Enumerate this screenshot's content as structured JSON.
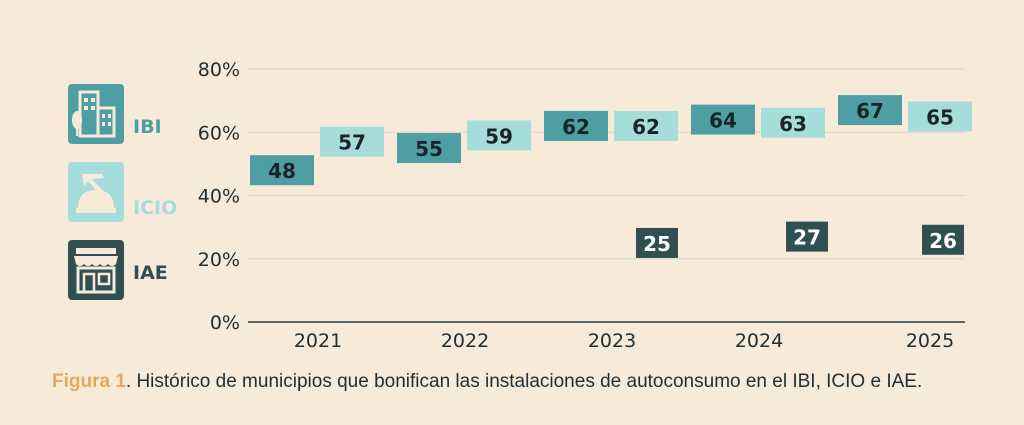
{
  "legend": [
    {
      "key": "ibi",
      "label": "IBI",
      "icon": "buildings-icon",
      "color": "#4e9ea3"
    },
    {
      "key": "icio",
      "label": "ICIO",
      "icon": "construction-hardhat-icon",
      "color": "#a6ddda"
    },
    {
      "key": "iae",
      "label": "IAE",
      "icon": "storefront-icon",
      "color": "#2f4f52"
    }
  ],
  "caption": {
    "figure_label": "Figura 1",
    "text": ". Histórico de municipios que  bonifican las instalaciones de autoconsumo en el IBI, ICIO e IAE."
  },
  "chart_data": {
    "type": "bar",
    "categories": [
      "2021",
      "2022",
      "2023",
      "2024",
      "2025"
    ],
    "series": [
      {
        "name": "IBI",
        "color": "#4e9ea3",
        "values": [
          48,
          55,
          62,
          64,
          67
        ]
      },
      {
        "name": "ICIO",
        "color": "#a6ddda",
        "values": [
          57,
          59,
          62,
          63,
          65
        ]
      },
      {
        "name": "IAE",
        "color": "#2f4f52",
        "values": [
          null,
          null,
          25,
          27,
          26
        ]
      }
    ],
    "ylim": [
      0,
      80
    ],
    "yticks": [
      0,
      20,
      40,
      60,
      80
    ],
    "ytick_labels": [
      "0%",
      "20%",
      "40%",
      "60%",
      "80%"
    ],
    "grid": true,
    "legend_position": "left"
  }
}
